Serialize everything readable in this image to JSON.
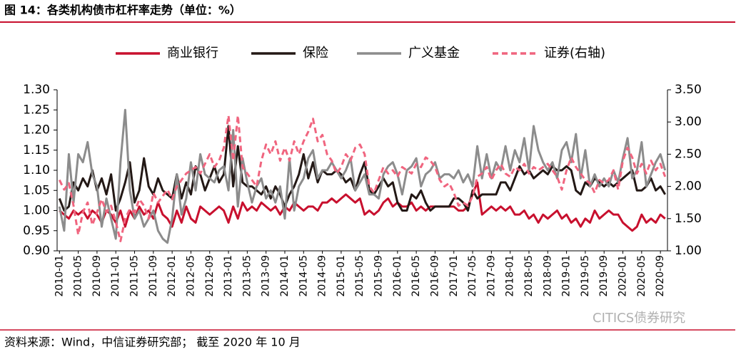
{
  "chart_data": {
    "type": "line",
    "title": "图 14：各类机构债市杠杆率走势（单位：%）",
    "source": "资料来源：Wind，中信证券研究部；  截至 2020 年 10 月",
    "watermark": "CITICS债券研究",
    "legend": "top",
    "categories": [
      "2010-01",
      null,
      null,
      null,
      "2010-05",
      null,
      null,
      null,
      "2010-09",
      null,
      null,
      null,
      "2011-01",
      null,
      null,
      null,
      "2011-05",
      null,
      null,
      null,
      "2011-09",
      null,
      null,
      null,
      "2012-01",
      null,
      null,
      null,
      "2012-05",
      null,
      null,
      null,
      "2012-09",
      null,
      null,
      null,
      "2013-01",
      null,
      null,
      null,
      "2013-05",
      null,
      null,
      null,
      "2013-09",
      null,
      null,
      null,
      "2014-01",
      null,
      null,
      null,
      "2014-05",
      null,
      null,
      null,
      "2014-09",
      null,
      null,
      null,
      "2015-01",
      null,
      null,
      null,
      "2015-05",
      null,
      null,
      null,
      "2015-09",
      null,
      null,
      null,
      "2016-01",
      null,
      null,
      null,
      "2016-05",
      null,
      null,
      null,
      "2016-09",
      null,
      null,
      null,
      "2017-01",
      null,
      null,
      null,
      "2017-05",
      null,
      null,
      null,
      "2017-09",
      null,
      null,
      null,
      "2018-01",
      null,
      null,
      null,
      "2018-05",
      null,
      null,
      null,
      "2018-09",
      null,
      null,
      null,
      "2019-01",
      null,
      null,
      null,
      "2019-05",
      null,
      null,
      null,
      "2019-09",
      null,
      null,
      null,
      "2020-01",
      null,
      null,
      null,
      "2020-05",
      null,
      null,
      null,
      "2020-09",
      null
    ],
    "ylim": [
      0.9,
      1.3
    ],
    "yticks": [
      {
        "value": 0.9,
        "label": "0.90"
      },
      {
        "value": 0.95,
        "label": "0.95"
      },
      {
        "value": 1.0,
        "label": "1.00"
      },
      {
        "value": 1.05,
        "label": "1.05"
      },
      {
        "value": 1.1,
        "label": "1.10"
      },
      {
        "value": 1.15,
        "label": "1.15"
      },
      {
        "value": 1.2,
        "label": "1.20"
      },
      {
        "value": 1.25,
        "label": "1.25"
      },
      {
        "value": 1.3,
        "label": "1.30"
      }
    ],
    "y2lim": [
      1.0,
      3.5
    ],
    "y2ticks": [
      {
        "value": 1.0,
        "label": "1.00"
      },
      {
        "value": 1.5,
        "label": "1.50"
      },
      {
        "value": 2.0,
        "label": "2.00"
      },
      {
        "value": 2.5,
        "label": "2.50"
      },
      {
        "value": 3.0,
        "label": "3.00"
      },
      {
        "value": 3.5,
        "label": "3.50"
      }
    ],
    "series": [
      {
        "name": "商业银行",
        "color": "#c8102e",
        "dash": false,
        "values": [
          1.0,
          0.99,
          0.98,
          1.0,
          0.99,
          1.0,
          0.98,
          1.0,
          0.99,
          0.97,
          1.0,
          0.99,
          0.97,
          1.0,
          0.96,
          1.0,
          0.98,
          1.01,
          0.99,
          1.0,
          0.98,
          1.02,
          0.99,
          0.98,
          0.96,
          1.0,
          0.97,
          1.01,
          0.98,
          0.97,
          1.01,
          1.0,
          0.99,
          1.0,
          1.01,
          1.0,
          0.97,
          1.01,
          0.98,
          1.02,
          1.0,
          1.01,
          1.0,
          1.02,
          1.01,
          1.0,
          1.01,
          0.99,
          1.01,
          1.0,
          1.02,
          1.01,
          1.0,
          1.01,
          1.01,
          1.0,
          1.02,
          1.02,
          1.03,
          1.02,
          1.03,
          1.04,
          1.03,
          1.02,
          1.03,
          0.99,
          1.0,
          0.99,
          1.0,
          1.02,
          1.03,
          1.01,
          1.02,
          1.01,
          1.01,
          1.02,
          1.0,
          1.01,
          1.0,
          1.01,
          1.01,
          1.01,
          1.01,
          1.01,
          1.01,
          1.0,
          1.0,
          1.01,
          1.04,
          1.07,
          0.99,
          1.0,
          1.01,
          1.0,
          1.01,
          1.0,
          1.01,
          0.99,
          0.99,
          1.0,
          0.98,
          0.99,
          0.97,
          0.99,
          0.98,
          0.99,
          1.0,
          0.98,
          0.99,
          0.97,
          0.98,
          0.96,
          0.98,
          0.97,
          1.0,
          0.98,
          0.99,
          1.0,
          0.99,
          0.99,
          0.97,
          0.96,
          0.95,
          0.96,
          0.99,
          0.97,
          0.98,
          0.97,
          0.99,
          0.98
        ]
      },
      {
        "name": "保险",
        "color": "#231815",
        "dash": false,
        "values": [
          1.03,
          1.0,
          1.01,
          1.07,
          1.05,
          1.08,
          1.06,
          1.1,
          1.05,
          1.08,
          1.04,
          1.09,
          1.0,
          1.03,
          1.07,
          1.12,
          1.02,
          1.05,
          1.13,
          1.06,
          1.04,
          1.08,
          1.05,
          1.04,
          1.03,
          1.09,
          1.03,
          1.07,
          1.04,
          1.11,
          1.09,
          1.05,
          1.08,
          1.11,
          1.07,
          1.09,
          1.21,
          1.06,
          1.16,
          1.07,
          1.06,
          1.06,
          1.05,
          1.04,
          1.06,
          1.03,
          1.06,
          1.04,
          1.01,
          1.04,
          1.06,
          1.09,
          1.14,
          1.08,
          1.12,
          1.07,
          1.1,
          1.09,
          1.09,
          1.1,
          1.09,
          1.07,
          1.08,
          1.05,
          1.09,
          1.12,
          1.05,
          1.04,
          1.06,
          1.08,
          1.06,
          1.07,
          1.02,
          1.0,
          1.0,
          1.04,
          1.03,
          1.05,
          1.02,
          1.0,
          1.01,
          1.01,
          1.01,
          1.01,
          1.03,
          1.03,
          1.02,
          1.0,
          1.05,
          1.03,
          1.04,
          1.04,
          1.04,
          1.04,
          1.07,
          1.07,
          1.05,
          1.08,
          1.11,
          1.09,
          1.1,
          1.08,
          1.09,
          1.1,
          1.09,
          1.11,
          1.1,
          1.1,
          1.11,
          1.1,
          1.05,
          1.04,
          1.07,
          1.06,
          1.08,
          1.07,
          1.06,
          1.07,
          1.06,
          1.07,
          1.08,
          1.09,
          1.1,
          1.05,
          1.05,
          1.06,
          1.08,
          1.05,
          1.06,
          1.04
        ]
      },
      {
        "name": "广义基金",
        "color": "#8c8c8c",
        "dash": false,
        "values": [
          1.01,
          0.95,
          1.14,
          1.02,
          1.14,
          1.12,
          1.17,
          1.09,
          1.06,
          0.96,
          1.03,
          0.98,
          0.93,
          1.12,
          1.25,
          1.05,
          0.98,
          1.0,
          0.96,
          0.98,
          1.0,
          0.95,
          0.93,
          0.92,
          0.98,
          1.09,
          0.99,
          1.03,
          1.12,
          1.05,
          1.14,
          1.09,
          1.08,
          1.07,
          1.1,
          1.11,
          1.05,
          1.2,
          1.01,
          1.13,
          1.07,
          1.02,
          1.06,
          1.08,
          1.03,
          1.05,
          1.02,
          1.06,
          0.98,
          1.13,
          1.0,
          1.06,
          1.08,
          1.13,
          1.15,
          1.08,
          1.1,
          1.1,
          1.12,
          1.1,
          1.08,
          1.1,
          1.13,
          1.05,
          1.07,
          1.09,
          1.04,
          1.04,
          1.03,
          1.09,
          1.11,
          1.12,
          1.09,
          1.04,
          1.1,
          1.11,
          1.13,
          1.06,
          1.09,
          1.1,
          1.12,
          1.08,
          1.09,
          1.09,
          1.08,
          1.1,
          1.07,
          1.09,
          1.06,
          1.16,
          1.08,
          1.14,
          1.08,
          1.12,
          1.1,
          1.16,
          1.1,
          1.15,
          1.12,
          1.18,
          1.1,
          1.21,
          1.15,
          1.12,
          1.1,
          1.12,
          1.08,
          1.15,
          1.17,
          1.12,
          1.19,
          1.08,
          1.15,
          1.06,
          1.09,
          1.06,
          1.08,
          1.06,
          1.1,
          1.07,
          1.13,
          1.18,
          1.08,
          1.1,
          1.17,
          1.06,
          1.09,
          1.12,
          1.14,
          1.1
        ]
      },
      {
        "name": "证券(右轴)",
        "color": "#f0657f",
        "dash": true,
        "axis": "y2",
        "values": [
          2.1,
          1.95,
          2.05,
          1.7,
          1.25,
          1.6,
          1.75,
          1.4,
          1.6,
          1.8,
          1.6,
          1.7,
          1.45,
          1.15,
          1.5,
          1.65,
          1.6,
          1.8,
          1.7,
          1.5,
          1.9,
          1.75,
          1.85,
          1.95,
          1.8,
          2.0,
          2.1,
          2.2,
          2.25,
          2.3,
          2.2,
          2.35,
          2.5,
          2.3,
          2.4,
          2.6,
          3.1,
          2.4,
          3.1,
          2.3,
          2.2,
          2.1,
          2.0,
          2.4,
          2.65,
          2.5,
          2.7,
          2.4,
          2.6,
          2.4,
          2.7,
          2.5,
          2.7,
          2.85,
          3.05,
          2.7,
          2.8,
          2.5,
          2.4,
          2.2,
          2.3,
          2.5,
          2.4,
          2.6,
          2.65,
          2.5,
          2.0,
          1.9,
          2.1,
          2.3,
          2.2,
          2.25,
          2.15,
          2.3,
          2.25,
          2.2,
          2.35,
          2.3,
          2.45,
          2.4,
          2.3,
          2.1,
          2.0,
          2.05,
          1.9,
          1.7,
          1.75,
          1.7,
          1.85,
          2.15,
          2.2,
          2.3,
          2.1,
          2.25,
          2.35,
          2.2,
          2.15,
          2.3,
          2.25,
          2.35,
          2.2,
          2.3,
          2.25,
          2.3,
          2.35,
          2.25,
          2.15,
          1.95,
          2.25,
          2.45,
          2.3,
          2.2,
          2.1,
          2.05,
          1.9,
          2.1,
          2.05,
          2.1,
          2.25,
          1.95,
          2.4,
          2.6,
          2.45,
          2.2,
          2.35,
          2.2,
          2.4,
          2.25,
          2.35,
          2.15
        ]
      }
    ]
  }
}
